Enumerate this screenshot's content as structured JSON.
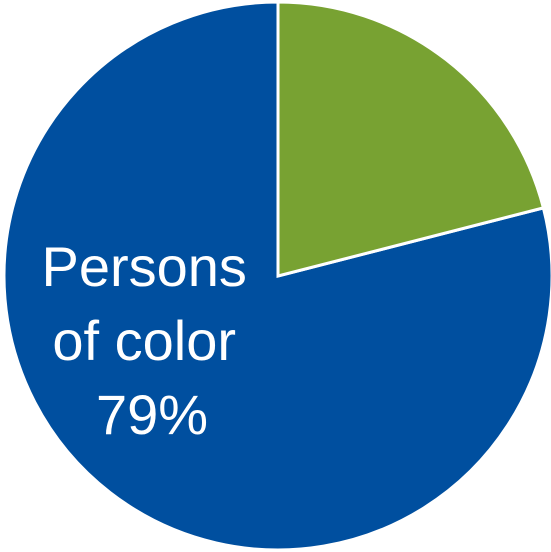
{
  "chart_data": {
    "type": "pie",
    "title": "",
    "slices": [
      {
        "label_lines": [
          "Persons",
          "of color"
        ],
        "value": 79,
        "value_label": "79%",
        "color": "#004f9f"
      },
      {
        "label_lines": [],
        "value": 21,
        "value_label": "",
        "color": "#78a232"
      }
    ],
    "start_angle_deg": 0,
    "direction": "counterclockwise",
    "legend": "none"
  }
}
